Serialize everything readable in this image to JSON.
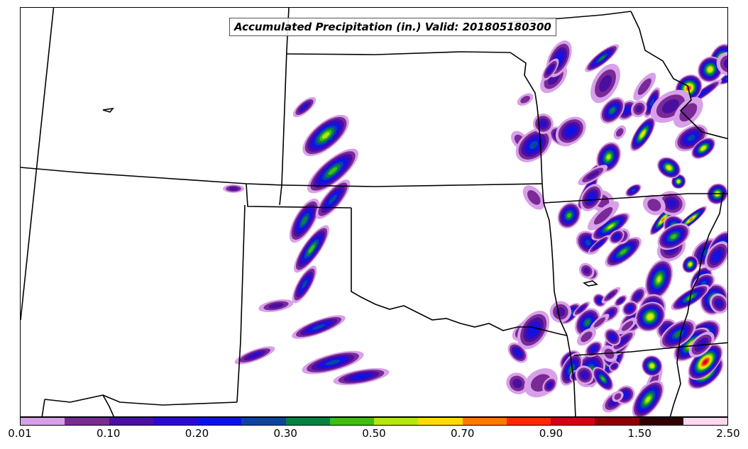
{
  "title": "Accumulated Precipitation (in.) Valid: 201805180300",
  "colorbar": {
    "colors": [
      "#d8a0e8",
      "#7a2a96",
      "#4b0fa0",
      "#2a0ad0",
      "#0a14e8",
      "#0a46a0",
      "#0a8040",
      "#3cbe14",
      "#b4e614",
      "#ffdc00",
      "#ff7800",
      "#ff2800",
      "#d20014",
      "#8c0000",
      "#320000",
      "#ffd8f0"
    ],
    "tick_labels": [
      "0.01",
      "0.10",
      "0.20",
      "0.30",
      "0.50",
      "0.70",
      "0.90",
      "1.50",
      "2.50"
    ]
  },
  "legend_colors_key": "colorbar.colors"
}
